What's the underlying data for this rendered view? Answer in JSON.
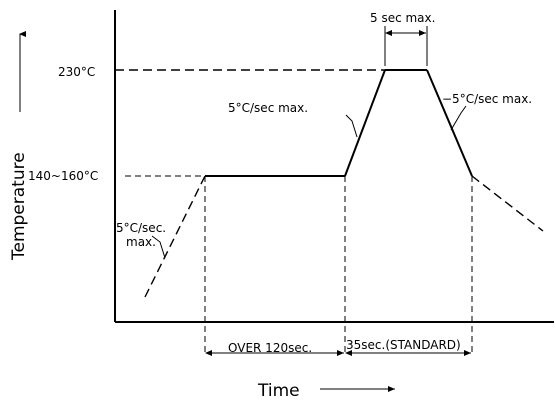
{
  "axes": {
    "y_title": "Temperature",
    "x_title": "Time"
  },
  "levels": {
    "peak": "230°C",
    "preheat": "140~160°C"
  },
  "rates": {
    "initial_rise": "5°C/sec.",
    "initial_rise_suffix": "max.",
    "ramp_up": "5°C/sec  max.",
    "ramp_down": "−5°C/sec  max."
  },
  "durations": {
    "peak_hold": "5 sec  max.",
    "preheat": "OVER  120sec.",
    "reflow": "35sec.(STANDARD)"
  }
}
